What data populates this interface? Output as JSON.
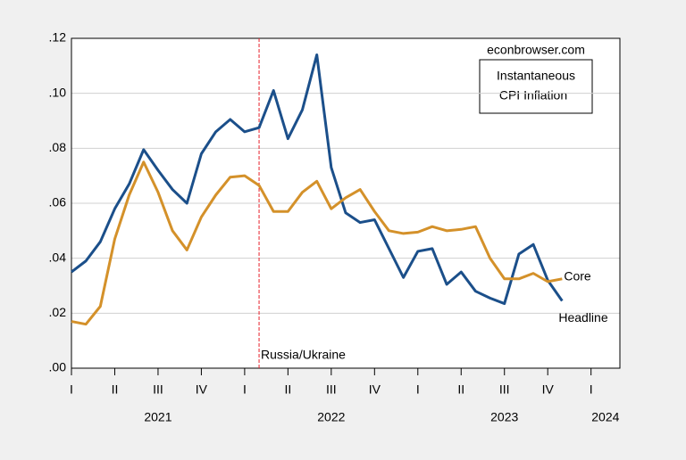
{
  "chart_data": {
    "type": "line",
    "title_lines": [
      "Instantaneous",
      "CPI Inflation"
    ],
    "source": "econbrowser.com",
    "x": [
      2021,
      2021.0833,
      2021.1667,
      2021.25,
      2021.3333,
      2021.4167,
      2021.5,
      2021.5833,
      2021.6667,
      2021.75,
      2021.8333,
      2021.9167,
      2022,
      2022.0833,
      2022.1667,
      2022.25,
      2022.3333,
      2022.4167,
      2022.5,
      2022.5833,
      2022.6667,
      2022.75,
      2022.8333,
      2022.9167,
      2023,
      2023.0833,
      2023.1667,
      2023.25,
      2023.3333,
      2023.4167,
      2023.5,
      2023.5833,
      2023.6667,
      2023.75,
      2023.8333
    ],
    "series": [
      {
        "name": "Headline",
        "color": "#1b4f8a",
        "values": [
          0.035,
          0.039,
          0.046,
          0.058,
          0.067,
          0.0795,
          0.072,
          0.065,
          0.06,
          0.078,
          0.086,
          0.0905,
          0.086,
          0.0875,
          0.101,
          0.0835,
          0.094,
          0.114,
          0.073,
          0.0565,
          0.053,
          0.054,
          0.0435,
          0.033,
          0.0425,
          0.0435,
          0.0305,
          0.035,
          0.028,
          0.0255,
          0.0235,
          0.0415,
          0.045,
          0.032,
          0.0245
        ]
      },
      {
        "name": "Core",
        "color": "#d4912a",
        "values": [
          0.017,
          0.016,
          0.0225,
          0.047,
          0.063,
          0.075,
          0.064,
          0.05,
          0.043,
          0.055,
          0.063,
          0.0695,
          0.07,
          0.0665,
          0.057,
          0.057,
          0.064,
          0.068,
          0.058,
          0.062,
          0.065,
          0.057,
          0.05,
          0.049,
          0.0495,
          0.0515,
          0.05,
          0.0505,
          0.0515,
          0.04,
          0.0325,
          0.0325,
          0.0345,
          0.0315,
          0.0325
        ]
      }
    ],
    "xlim": [
      2021,
      2024.1667
    ],
    "xticks": [
      {
        "value": 2021,
        "label": "I"
      },
      {
        "value": 2021.25,
        "label": "II"
      },
      {
        "value": 2021.5,
        "label": "III"
      },
      {
        "value": 2021.75,
        "label": "IV"
      },
      {
        "value": 2022,
        "label": "I"
      },
      {
        "value": 2022.25,
        "label": "II"
      },
      {
        "value": 2022.5,
        "label": "III"
      },
      {
        "value": 2022.75,
        "label": "IV"
      },
      {
        "value": 2023,
        "label": "I"
      },
      {
        "value": 2023.25,
        "label": "II"
      },
      {
        "value": 2023.5,
        "label": "III"
      },
      {
        "value": 2023.75,
        "label": "IV"
      },
      {
        "value": 2024,
        "label": "I"
      }
    ],
    "years": [
      2021,
      2022,
      2023,
      2024
    ],
    "ylim": [
      0,
      0.12
    ],
    "yticks": [
      {
        "value": 0,
        "label": ".00"
      },
      {
        "value": 0.02,
        "label": ".02"
      },
      {
        "value": 0.04,
        "label": ".04"
      },
      {
        "value": 0.06,
        "label": ".06"
      },
      {
        "value": 0.08,
        "label": ".08"
      },
      {
        "value": 0.1,
        "label": ".10"
      },
      {
        "value": 0.12,
        "label": ".12"
      }
    ],
    "grid": true,
    "annotation": {
      "x": 2022.0833,
      "label": "Russia/Ukraine",
      "color": "#e8202a"
    }
  }
}
